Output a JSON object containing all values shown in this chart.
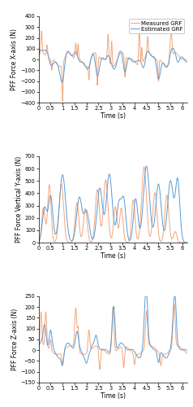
{
  "subplots": [
    {
      "ylabel": "PFF Force X-axis (N)",
      "xlabel": "Time (s)",
      "ylim": [
        -400,
        400
      ],
      "xlim": [
        0,
        6.2
      ],
      "yticks": [
        -400,
        -300,
        -200,
        -100,
        0,
        100,
        200,
        300,
        400
      ],
      "xticks": [
        0,
        0.5,
        1.0,
        1.5,
        2.0,
        2.5,
        3.0,
        3.5,
        4.0,
        4.5,
        5.0,
        5.5,
        6.0
      ]
    },
    {
      "ylabel": "PFF Force Vertical Y-axis (N)",
      "xlabel": "Time (s)",
      "ylim": [
        0,
        700
      ],
      "xlim": [
        0,
        6.2
      ],
      "yticks": [
        0,
        100,
        200,
        300,
        400,
        500,
        600,
        700
      ],
      "xticks": [
        0,
        0.5,
        1.0,
        1.5,
        2.0,
        2.5,
        3.0,
        3.5,
        4.0,
        4.5,
        5.0,
        5.5,
        6.0
      ]
    },
    {
      "ylabel": "PFF Force Z-axis (N)",
      "xlabel": "Time (s)",
      "ylim": [
        -150,
        250
      ],
      "xlim": [
        0,
        6.2
      ],
      "yticks": [
        -150,
        -100,
        -50,
        0,
        50,
        100,
        150,
        200,
        250
      ],
      "xticks": [
        0,
        0.5,
        1.0,
        1.5,
        2.0,
        2.5,
        3.0,
        3.5,
        4.0,
        4.5,
        5.0,
        5.5,
        6.0
      ]
    }
  ],
  "legend": [
    "Measured GRF",
    "Estimated GRF"
  ],
  "measured_color": "#5B9BD5",
  "estimated_color": "#F4A57A",
  "line_width": 0.7,
  "font_size": 5.5,
  "tick_font_size": 4.8
}
